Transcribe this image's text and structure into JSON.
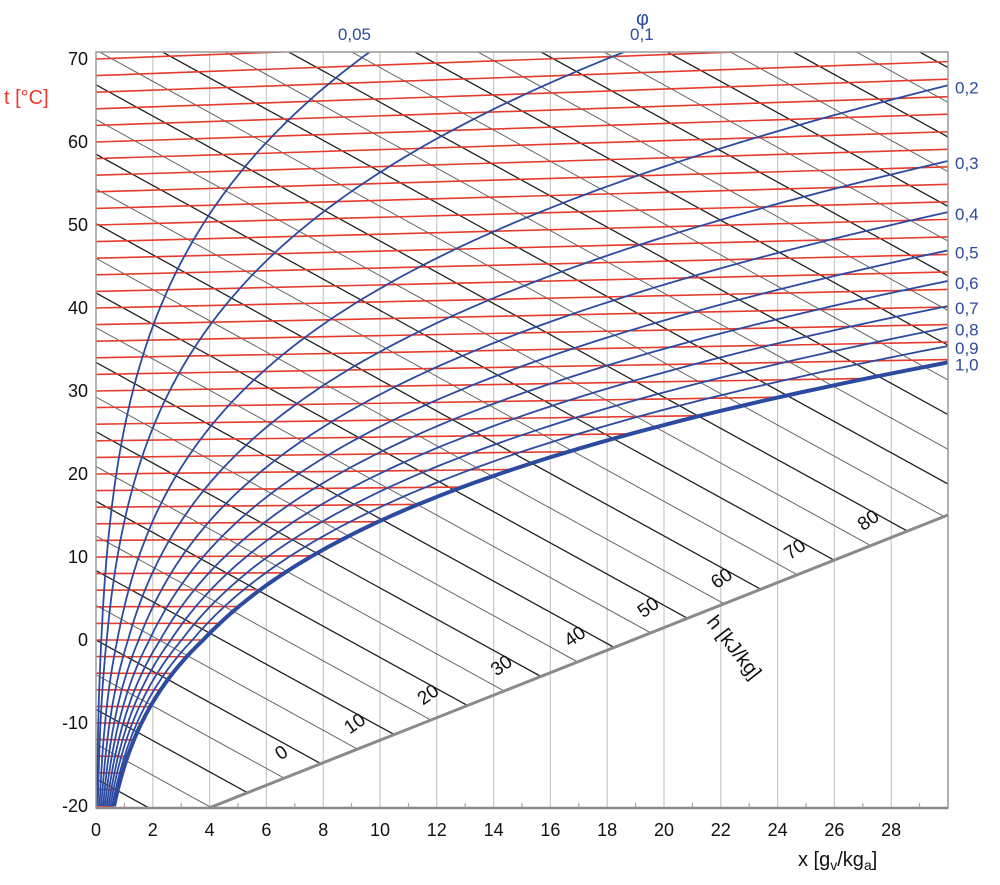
{
  "chart_data": {
    "type": "line",
    "title": "",
    "xlabel": "x [gv/kga]",
    "xlabel_parts": {
      "main": "x [g",
      "sub1": "v",
      "mid": "/kg",
      "sub2": "a",
      "end": "]"
    },
    "ylabel": "t [°C]",
    "enthalpy_label": "h [kJ/kg]",
    "phi_symbol": "φ",
    "xlim": [
      0,
      30
    ],
    "ylim": [
      -20,
      70
    ],
    "x_ticks": [
      "0",
      "2",
      "4",
      "6",
      "8",
      "10",
      "12",
      "14",
      "16",
      "18",
      "20",
      "22",
      "24",
      "26",
      "28"
    ],
    "y_ticks": [
      "70",
      "60",
      "50",
      "40",
      "30",
      "20",
      "10",
      "0",
      "-10",
      "-20"
    ],
    "isotherm_step_c": 2,
    "enthalpy_step_kj_kg": 5,
    "enthalpy_tick_labels": [
      "0",
      "10",
      "20",
      "30",
      "40",
      "50",
      "60",
      "70",
      "80"
    ],
    "series": [
      {
        "name": "0,05",
        "phi": 0.05
      },
      {
        "name": "0,1",
        "phi": 0.1
      },
      {
        "name": "0,2",
        "phi": 0.2
      },
      {
        "name": "0,3",
        "phi": 0.3
      },
      {
        "name": "0,4",
        "phi": 0.4
      },
      {
        "name": "0,5",
        "phi": 0.5
      },
      {
        "name": "0,6",
        "phi": 0.6
      },
      {
        "name": "0,7",
        "phi": 0.7
      },
      {
        "name": "0,8",
        "phi": 0.8
      },
      {
        "name": "0,9",
        "phi": 0.9
      },
      {
        "name": "1,0",
        "phi": 1.0
      }
    ],
    "grid": true,
    "colors": {
      "isotherm": "#e53b2c",
      "humidity": "#2c4aa0",
      "enthalpy": "#222222",
      "grid": "#c8c8c8",
      "scale_line": "#8a8a8a",
      "ylabel": "#e53b2c"
    }
  }
}
